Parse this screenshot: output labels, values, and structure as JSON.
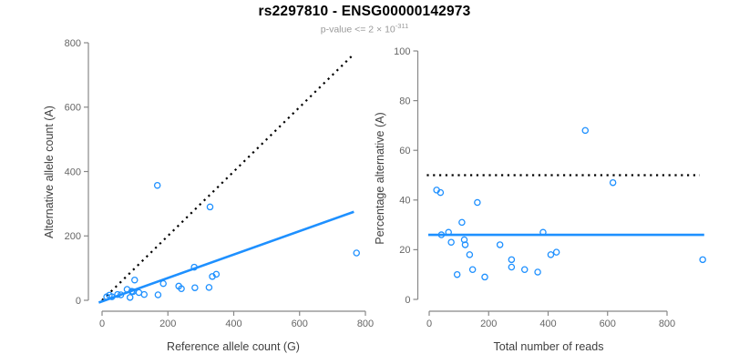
{
  "figure": {
    "title": "rs2297810 - ENSG00000142973",
    "subtitle": {
      "base": "p-value <= 2 × 10",
      "exponent": "-311"
    }
  },
  "colors": {
    "accent_blue": "#1E90FF",
    "line_black": "#000000",
    "axis_gray": "#888888",
    "tick_label_gray": "#666666",
    "subtitle_gray": "#999999"
  },
  "chart_data": [
    {
      "type": "scatter",
      "name": "allele-counts-scatter",
      "xlabel": "Reference allele count (G)",
      "ylabel": "Alternative allele count (A)",
      "xlim": [
        0,
        800
      ],
      "ylim": [
        0,
        800
      ],
      "xticks": [
        0,
        200,
        400,
        600,
        800
      ],
      "yticks": [
        0,
        200,
        400,
        600,
        800
      ],
      "grid": false,
      "legend": null,
      "point_color": "#1E90FF",
      "points": [
        [
          14,
          11
        ],
        [
          22,
          16
        ],
        [
          30,
          11
        ],
        [
          47,
          18
        ],
        [
          57,
          17
        ],
        [
          85,
          9
        ],
        [
          76,
          34
        ],
        [
          90,
          28
        ],
        [
          94,
          27
        ],
        [
          112,
          24
        ],
        [
          128,
          18
        ],
        [
          99,
          63
        ],
        [
          170,
          17
        ],
        [
          186,
          52
        ],
        [
          233,
          44
        ],
        [
          241,
          36
        ],
        [
          282,
          39
        ],
        [
          325,
          40
        ],
        [
          280,
          103
        ],
        [
          335,
          74
        ],
        [
          347,
          81
        ],
        [
          168,
          357
        ],
        [
          328,
          290
        ],
        [
          773,
          147
        ]
      ],
      "lines": [
        {
          "name": "identity-line",
          "style": "dotted",
          "color": "#000000",
          "width": 2.2,
          "from": [
            0,
            0
          ],
          "to": [
            765,
            765
          ]
        },
        {
          "name": "regression-line",
          "style": "solid",
          "color": "#1E90FF",
          "width": 2.6,
          "from": [
            -10,
            -7
          ],
          "to": [
            765,
            275
          ]
        }
      ]
    },
    {
      "type": "scatter",
      "name": "percentage-scatter",
      "xlabel": "Total number of reads",
      "ylabel": "Percentage alternative (A)",
      "xlim": [
        0,
        800
      ],
      "ylim": [
        0,
        100
      ],
      "xticks": [
        0,
        200,
        400,
        600,
        800
      ],
      "yticks": [
        0,
        20,
        40,
        60,
        80,
        100
      ],
      "grid": false,
      "legend": null,
      "point_color": "#1E90FF",
      "points": [
        [
          25,
          44
        ],
        [
          38,
          43
        ],
        [
          41,
          26
        ],
        [
          65,
          27
        ],
        [
          74,
          23
        ],
        [
          94,
          10
        ],
        [
          110,
          31
        ],
        [
          118,
          24
        ],
        [
          121,
          22
        ],
        [
          136,
          18
        ],
        [
          146,
          12
        ],
        [
          162,
          39
        ],
        [
          187,
          9
        ],
        [
          238,
          22
        ],
        [
          277,
          16
        ],
        [
          277,
          13
        ],
        [
          321,
          12
        ],
        [
          365,
          11
        ],
        [
          383,
          27
        ],
        [
          409,
          18
        ],
        [
          428,
          19
        ],
        [
          525,
          68
        ],
        [
          618,
          47
        ],
        [
          920,
          16
        ]
      ],
      "lines": [
        {
          "name": "fifty-percent-line",
          "style": "dotted",
          "color": "#000000",
          "width": 2.2,
          "from": [
            -8,
            50
          ],
          "to": [
            910,
            50
          ]
        },
        {
          "name": "mean-percentage-line",
          "style": "solid",
          "color": "#1E90FF",
          "width": 2.6,
          "from": [
            -3,
            26
          ],
          "to": [
            925,
            26
          ]
        }
      ]
    }
  ]
}
